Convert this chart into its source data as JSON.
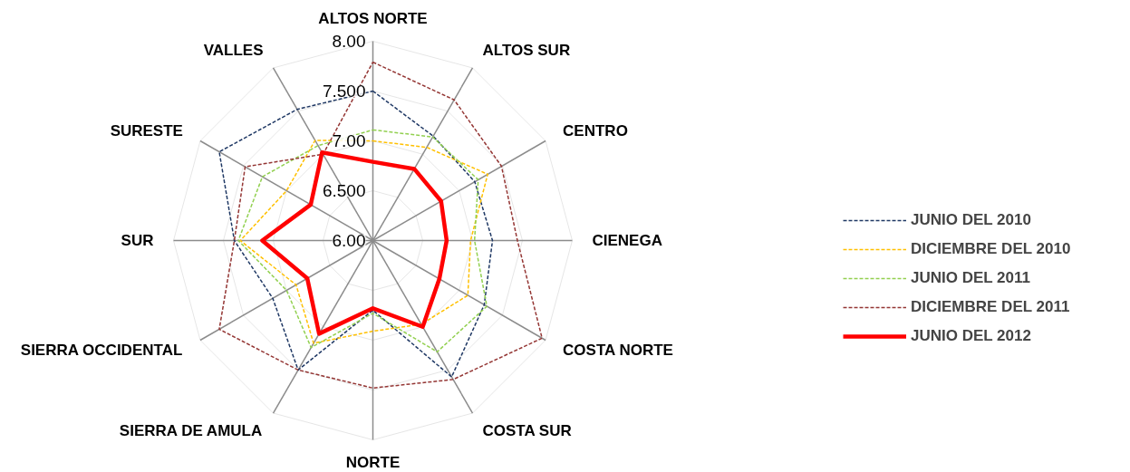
{
  "chart_data": {
    "type": "radar",
    "categories": [
      "ALTOS NORTE",
      "ALTOS SUR",
      "CENTRO",
      "CIENEGA",
      "COSTA NORTE",
      "COSTA SUR",
      "NORTE",
      "SIERRA DE AMULA",
      "SIERRA OCCIDENTAL",
      "SUR",
      "SURESTE",
      "VALLES"
    ],
    "ylim": [
      6,
      8
    ],
    "yticks": [
      {
        "value": 6,
        "label": "6.00"
      },
      {
        "value": 6.5,
        "label": "6.500"
      },
      {
        "value": 7,
        "label": "7.00"
      },
      {
        "value": 7.5,
        "label": "7.500"
      },
      {
        "value": 8,
        "label": "8.00"
      }
    ],
    "grid": true,
    "legend": "right",
    "marker": "none",
    "series": [
      {
        "name": "JUNIO DEL 2010",
        "color": "#1f3864",
        "line_style": "dashed",
        "values": [
          7.5,
          7.21,
          7.18,
          7.2,
          7.29,
          7.58,
          6.7,
          7.5,
          7.16,
          7.39,
          7.78,
          7.52
        ]
      },
      {
        "name": "DICIEMBRE DEL 2010",
        "color": "#ffc000",
        "line_style": "dashed",
        "values": [
          7.0,
          7.08,
          7.33,
          6.98,
          7.1,
          6.97,
          6.91,
          7.19,
          6.89,
          7.33,
          7.0,
          7.16
        ]
      },
      {
        "name": "JUNIO DEL 2011",
        "color": "#92d050",
        "line_style": "dashed",
        "values": [
          7.11,
          7.2,
          7.22,
          7.02,
          7.32,
          7.29,
          6.73,
          7.24,
          7.0,
          7.35,
          7.28,
          7.1
        ]
      },
      {
        "name": "DICIEMBRE DEL 2011",
        "color": "#943634",
        "line_style": "dashed",
        "values": [
          7.79,
          7.63,
          7.49,
          7.45,
          7.96,
          7.61,
          7.48,
          7.5,
          7.78,
          7.39,
          7.48,
          7.0
        ]
      },
      {
        "name": "JUNIO DEL 2012",
        "color": "#ff0000",
        "line_style": "solid",
        "values": [
          6.79,
          6.83,
          6.79,
          6.74,
          6.77,
          7.0,
          6.68,
          7.08,
          6.76,
          7.11,
          6.72,
          7.02
        ]
      }
    ]
  }
}
